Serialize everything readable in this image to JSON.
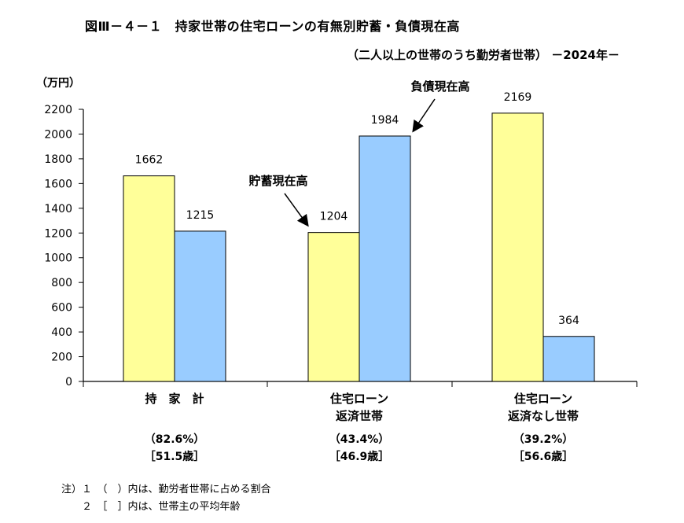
{
  "title": "図Ⅲ－４－１　持家世帯の住宅ローンの有無別貯蓄・負債現在高",
  "subtitle": "（二人以上の世帯のうち勤労者世帯） －2024年－",
  "unit": "（万円）",
  "groups": [
    {
      "line1": "持　家　計",
      "line2": "",
      "share": "（82.6%）",
      "age": "［51.5歳］"
    },
    {
      "line1": "住宅ローン",
      "line2": "返済世帯",
      "share": "（43.4%）",
      "age": "［46.9歳］"
    },
    {
      "line1": "住宅ローン",
      "line2": "返済なし世帯",
      "share": "（39.2%）",
      "age": "［56.6歳］"
    }
  ],
  "annotations": {
    "savings": "貯蓄現在高",
    "debt": "負債現在高"
  },
  "notes": [
    "注）１　（　）内は、勤労者世帯に占める割合",
    "　　２　［　］内は、世帯主の平均年齢"
  ],
  "colors": {
    "savings": "#ffff99",
    "debt": "#99ccff",
    "stroke": "#000000"
  },
  "chart_data": {
    "type": "bar",
    "categories": [
      "持家計",
      "住宅ローン返済世帯",
      "住宅ローン返済なし世帯"
    ],
    "series": [
      {
        "name": "貯蓄現在高",
        "values": [
          1662,
          1204,
          2169
        ]
      },
      {
        "name": "負債現在高",
        "values": [
          1215,
          1984,
          364
        ]
      }
    ],
    "ylim": [
      0,
      2200
    ],
    "yticks": [
      0,
      200,
      400,
      600,
      800,
      1000,
      1200,
      1400,
      1600,
      1800,
      2000,
      2200
    ],
    "ylabel": "（万円）",
    "grid": false,
    "legend": "none (series labeled by callout annotations)"
  }
}
